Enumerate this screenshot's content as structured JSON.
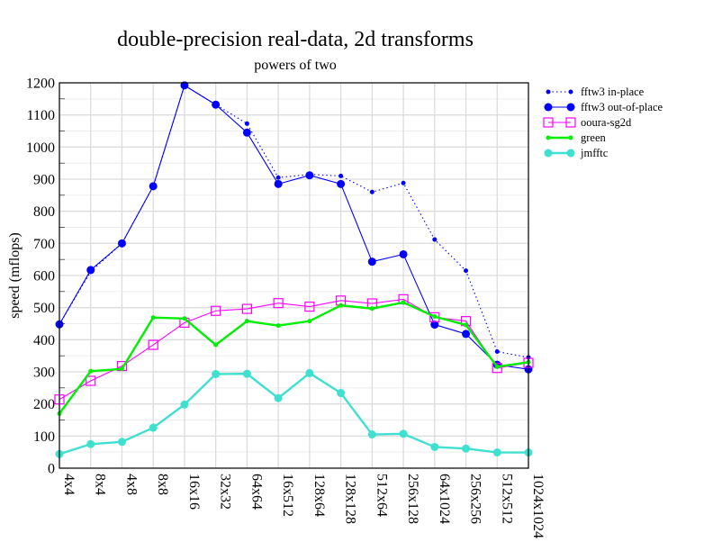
{
  "chart_data": {
    "type": "line",
    "title": "double-precision real-data, 2d transforms",
    "subtitle": "powers of two",
    "xlabel": "",
    "ylabel": "speed (mflops)",
    "ylim": [
      0,
      1200
    ],
    "yticks": [
      0,
      100,
      200,
      300,
      400,
      500,
      600,
      700,
      800,
      900,
      1000,
      1100,
      1200
    ],
    "grid": true,
    "legend_position": "right-top, outside plot",
    "categories": [
      "4x4",
      "8x4",
      "4x8",
      "8x8",
      "16x16",
      "32x32",
      "64x64",
      "16x512",
      "128x64",
      "128x128",
      "512x64",
      "256x128",
      "64x1024",
      "256x256",
      "512x512",
      "1024x1024"
    ],
    "series": [
      {
        "name": "fftw3 in-place",
        "color": "#0000ff",
        "style": "dotted",
        "marker": "small-dot",
        "values": [
          448,
          612,
          700,
          878,
          1192,
          1132,
          1073,
          905,
          915,
          910,
          860,
          888,
          712,
          615,
          363,
          345
        ]
      },
      {
        "name": "fftw3 out-of-place",
        "color": "#0000ff",
        "style": "solid",
        "marker": "dot",
        "values": [
          448,
          617,
          700,
          878,
          1192,
          1132,
          1045,
          885,
          912,
          885,
          643,
          666,
          447,
          418,
          322,
          308
        ]
      },
      {
        "name": "ooura-sg2d",
        "color": "#ff00ff",
        "style": "solid",
        "marker": "square",
        "values": [
          214,
          272,
          318,
          384,
          453,
          490,
          496,
          514,
          503,
          522,
          513,
          526,
          470,
          458,
          312,
          328
        ]
      },
      {
        "name": "green",
        "color": "#00ee00",
        "style": "solid-thick",
        "marker": "small-dot",
        "values": [
          170,
          302,
          309,
          469,
          466,
          384,
          458,
          444,
          458,
          507,
          497,
          516,
          472,
          446,
          316,
          330
        ]
      },
      {
        "name": "jmfftc",
        "color": "#40e0d0",
        "style": "solid-thick",
        "marker": "dot",
        "values": [
          44,
          75,
          82,
          126,
          198,
          293,
          294,
          218,
          296,
          234,
          105,
          107,
          66,
          61,
          49,
          49
        ]
      }
    ]
  }
}
